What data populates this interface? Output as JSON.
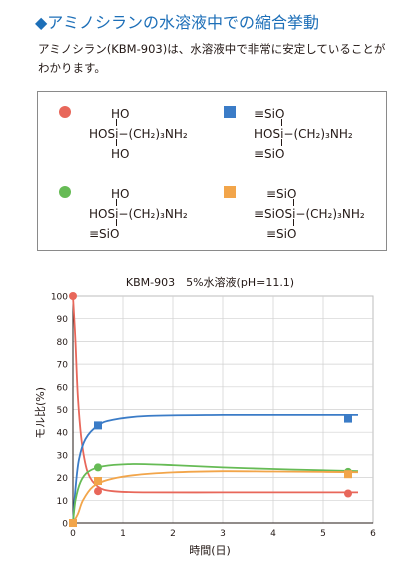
{
  "header": {
    "title": "◆アミノシランの水溶液中での縮合挙動",
    "intro": "アミノシラン(KBM-903)は、水溶液中で非常に安定していることがわかります。"
  },
  "legend": [
    {
      "color": "#e8675a",
      "shape": "circle",
      "lines": [
        "HO",
        "HOSi−(CH₂)₃NH₂",
        "HO"
      ]
    },
    {
      "color": "#3b7cc7",
      "shape": "square",
      "lines": [
        "≡SiO",
        "HOSi−(CH₂)₃NH₂",
        "≡SiO"
      ]
    },
    {
      "color": "#66bb55",
      "shape": "circle",
      "lines": [
        "HO",
        "HOSi−(CH₂)₃NH₂",
        "≡SiO"
      ]
    },
    {
      "color": "#f2a54a",
      "shape": "square",
      "lines": [
        "≡SiO",
        "≡SiOSi−(CH₂)₃NH₂",
        "≡SiO"
      ]
    }
  ],
  "chart_data": {
    "type": "line",
    "title": "KBM-903　5%水溶液(pH=11.1)",
    "xlabel": "時間(日)",
    "ylabel": "モル比(%)",
    "xlim": [
      0,
      6
    ],
    "ylim": [
      0,
      100
    ],
    "xticks": [
      0,
      1,
      2,
      3,
      4,
      5,
      6
    ],
    "yticks": [
      0,
      10,
      20,
      30,
      40,
      50,
      60,
      70,
      80,
      90,
      100
    ],
    "grid": true,
    "series": [
      {
        "color": "#e8675a",
        "marker": "circle",
        "points": [
          [
            0,
            100
          ],
          [
            0.5,
            14
          ],
          [
            5.5,
            13
          ]
        ],
        "curve": [
          [
            0,
            100
          ],
          [
            0.05,
            80
          ],
          [
            0.1,
            55
          ],
          [
            0.18,
            35
          ],
          [
            0.3,
            22
          ],
          [
            0.5,
            16
          ],
          [
            0.8,
            14
          ],
          [
            1.5,
            13.5
          ],
          [
            3,
            13.5
          ],
          [
            4.5,
            13.5
          ],
          [
            5.7,
            13.5
          ]
        ]
      },
      {
        "color": "#3b7cc7",
        "marker": "square",
        "points": [
          [
            0,
            0
          ],
          [
            0.5,
            43
          ],
          [
            5.5,
            46
          ]
        ],
        "curve": [
          [
            0,
            0
          ],
          [
            0.05,
            15
          ],
          [
            0.12,
            28
          ],
          [
            0.25,
            37
          ],
          [
            0.5,
            43
          ],
          [
            0.8,
            45.5
          ],
          [
            1.5,
            47.2
          ],
          [
            3,
            47.6
          ],
          [
            4.5,
            47.6
          ],
          [
            5.7,
            47.6
          ]
        ]
      },
      {
        "color": "#66bb55",
        "marker": "circle",
        "points": [
          [
            0,
            0
          ],
          [
            0.5,
            24.5
          ],
          [
            5.5,
            22.5
          ]
        ],
        "curve": [
          [
            0,
            0
          ],
          [
            0.05,
            10
          ],
          [
            0.15,
            18
          ],
          [
            0.3,
            22.5
          ],
          [
            0.6,
            25
          ],
          [
            1.2,
            26
          ],
          [
            2,
            25.5
          ],
          [
            3,
            24.5
          ],
          [
            4,
            23.8
          ],
          [
            5,
            23.2
          ],
          [
            5.7,
            22.8
          ]
        ]
      },
      {
        "color": "#f2a54a",
        "marker": "square",
        "points": [
          [
            0,
            0
          ],
          [
            0.5,
            18.5
          ],
          [
            5.5,
            21.5
          ]
        ],
        "curve": [
          [
            0,
            0
          ],
          [
            0.1,
            4
          ],
          [
            0.2,
            10
          ],
          [
            0.4,
            16
          ],
          [
            0.7,
            19
          ],
          [
            1.2,
            21
          ],
          [
            2,
            22.3
          ],
          [
            3,
            22.8
          ],
          [
            4,
            22.7
          ],
          [
            5,
            22.5
          ],
          [
            5.7,
            22.4
          ]
        ]
      }
    ]
  }
}
